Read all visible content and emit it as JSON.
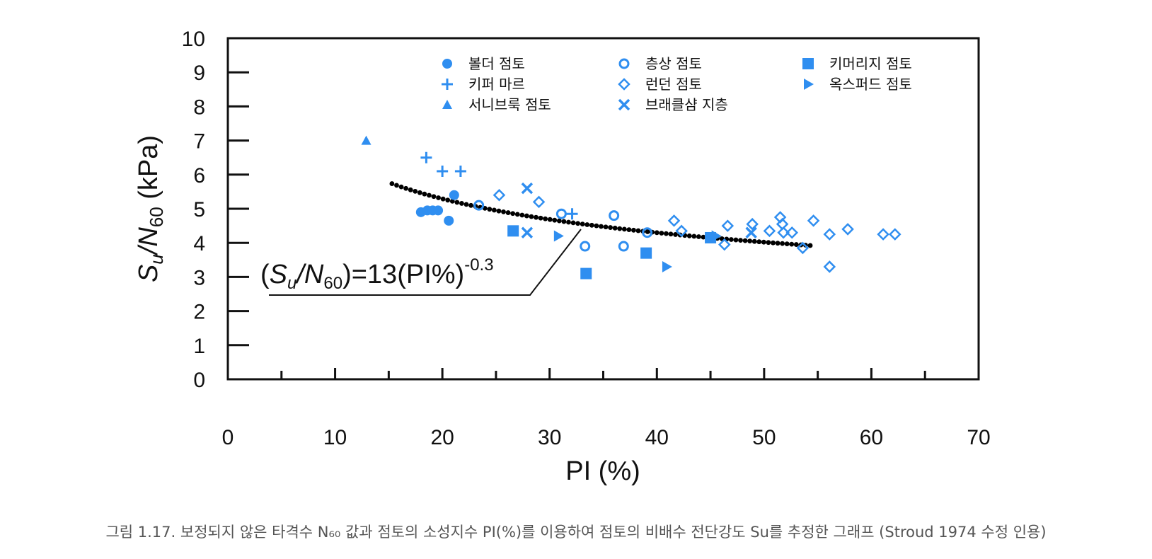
{
  "caption": "그림 1.17. 보정되지 않은 타격수 N₆₀ 값과 점토의 소성지수 PI(%)를 이용하여 점토의 비배수 전단강도 Su를 추정한 그래프 (Stroud 1974 수정 인용)",
  "colors": {
    "marker": "#2f8ef0",
    "trend": "#000000",
    "axis": "#111111",
    "caption": "#555555"
  },
  "chart_data": {
    "type": "scatter",
    "title": "",
    "xlabel": "PI (%)",
    "ylabel": "Su/N60 (kPa)",
    "xlim": [
      0,
      70
    ],
    "ylim": [
      0,
      10
    ],
    "x_ticks": [
      "0",
      "10",
      "20",
      "30",
      "40",
      "50",
      "60",
      "70"
    ],
    "y_ticks": [
      "0",
      "1",
      "2",
      "3",
      "4",
      "5",
      "6",
      "7",
      "8",
      "9",
      "10"
    ],
    "equation": {
      "prefix": "(",
      "S": "S",
      "u": "u",
      "slash": "/N",
      "n60": "60",
      "rhs": ")=13(PI%)",
      "exp": "-0.3"
    },
    "legend_placement": "top",
    "series": [
      {
        "name": "볼더 점토",
        "marker": "circle",
        "points": [
          [
            18,
            4.9
          ],
          [
            18.6,
            4.95
          ],
          [
            19.1,
            4.95
          ],
          [
            19.6,
            4.95
          ],
          [
            20.6,
            4.65
          ],
          [
            21.1,
            5.4
          ]
        ]
      },
      {
        "name": "층상 점토",
        "marker": "circle-open",
        "points": [
          [
            23.4,
            5.1
          ],
          [
            31.1,
            4.85
          ],
          [
            33.3,
            3.9
          ],
          [
            36,
            4.8
          ],
          [
            36.9,
            3.9
          ],
          [
            39.1,
            4.3
          ]
        ]
      },
      {
        "name": "키머리지 점토",
        "marker": "square",
        "points": [
          [
            26.6,
            4.35
          ],
          [
            33.4,
            3.1
          ],
          [
            39,
            3.7
          ],
          [
            45,
            4.15
          ]
        ]
      },
      {
        "name": "키퍼 마르",
        "marker": "plus",
        "points": [
          [
            18.5,
            6.5
          ],
          [
            20,
            6.1
          ],
          [
            21.7,
            6.1
          ],
          [
            32.1,
            4.85
          ]
        ]
      },
      {
        "name": "런던 점토",
        "marker": "diamond-open",
        "points": [
          [
            25.3,
            5.4
          ],
          [
            29,
            5.2
          ],
          [
            41.6,
            4.65
          ],
          [
            42.3,
            4.35
          ],
          [
            46.3,
            3.95
          ],
          [
            46.6,
            4.5
          ],
          [
            48.9,
            4.55
          ],
          [
            50.5,
            4.35
          ],
          [
            51.5,
            4.75
          ],
          [
            51.7,
            4.55
          ],
          [
            51.8,
            4.3
          ],
          [
            52.6,
            4.3
          ],
          [
            53.6,
            3.85
          ],
          [
            54.6,
            4.65
          ],
          [
            56.1,
            4.25
          ],
          [
            56.1,
            3.3
          ],
          [
            57.8,
            4.4
          ],
          [
            61.1,
            4.25
          ],
          [
            62.2,
            4.25
          ]
        ]
      },
      {
        "name": "옥스퍼드 점토",
        "marker": "triangle-right",
        "points": [
          [
            30.8,
            4.2
          ],
          [
            40.9,
            3.3
          ],
          [
            45.5,
            4.2
          ]
        ]
      },
      {
        "name": "서니브룩 점토",
        "marker": "triangle-up",
        "points": [
          [
            12.9,
            7.0
          ]
        ]
      },
      {
        "name": "브래클샴 지층",
        "marker": "cross",
        "points": [
          [
            27.9,
            4.3
          ],
          [
            27.9,
            5.6
          ],
          [
            48.8,
            4.3
          ]
        ]
      }
    ],
    "trendline": {
      "formula": "Su/N60 = 13 * PI^-0.3",
      "x_range": [
        15.3,
        54.3
      ]
    }
  }
}
